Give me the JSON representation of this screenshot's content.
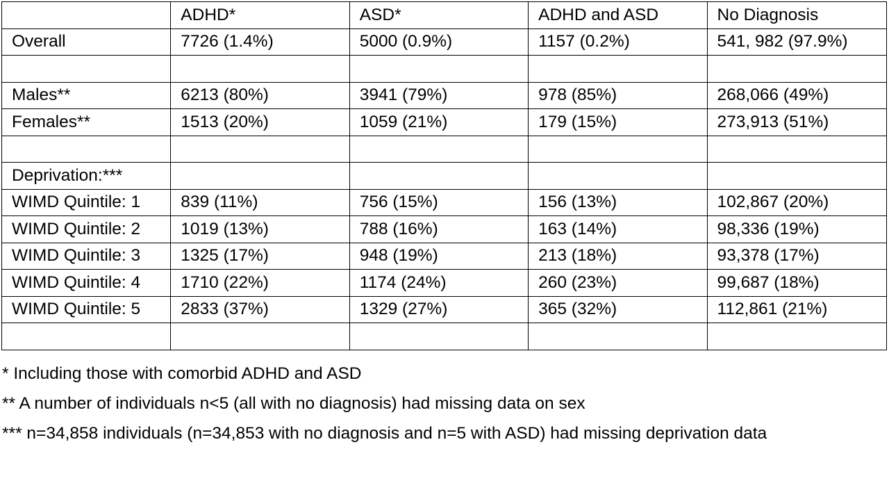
{
  "table": {
    "header": [
      "",
      "ADHD*",
      "ASD*",
      "ADHD and ASD",
      "No Diagnosis"
    ],
    "rows": [
      [
        "Overall",
        "7726 (1.4%)",
        "5000 (0.9%)",
        "1157 (0.2%)",
        "541, 982 (97.9%)"
      ],
      [
        "",
        "",
        "",
        "",
        ""
      ],
      [
        "Males**",
        "6213 (80%)",
        "3941 (79%)",
        "978 (85%)",
        "268,066 (49%)"
      ],
      [
        "Females**",
        "1513 (20%)",
        "1059 (21%)",
        "179 (15%)",
        "273,913 (51%)"
      ],
      [
        "",
        "",
        "",
        "",
        ""
      ],
      [
        "Deprivation:***",
        "",
        "",
        "",
        ""
      ],
      [
        "WIMD Quintile: 1",
        "839 (11%)",
        "756 (15%)",
        "156 (13%)",
        "102,867 (20%)"
      ],
      [
        "WIMD Quintile: 2",
        "1019 (13%)",
        "788 (16%)",
        "163 (14%)",
        "98,336 (19%)"
      ],
      [
        "WIMD Quintile: 3",
        "1325 (17%)",
        "948 (19%)",
        "213 (18%)",
        "93,378 (17%)"
      ],
      [
        "WIMD Quintile: 4",
        "1710 (22%)",
        "1174 (24%)",
        "260 (23%)",
        "99,687 (18%)"
      ],
      [
        "WIMD Quintile: 5",
        "2833 (37%)",
        "1329 (27%)",
        "365 (32%)",
        "112,861 (21%)"
      ],
      [
        "",
        "",
        "",
        "",
        ""
      ]
    ]
  },
  "footnotes": [
    "* Including those with comorbid ADHD and ASD",
    "** A number of individuals n<5 (all with no diagnosis) had missing data on sex",
    "*** n=34,858 individuals (n=34,853 with no diagnosis and n=5 with ASD) had missing deprivation data"
  ]
}
